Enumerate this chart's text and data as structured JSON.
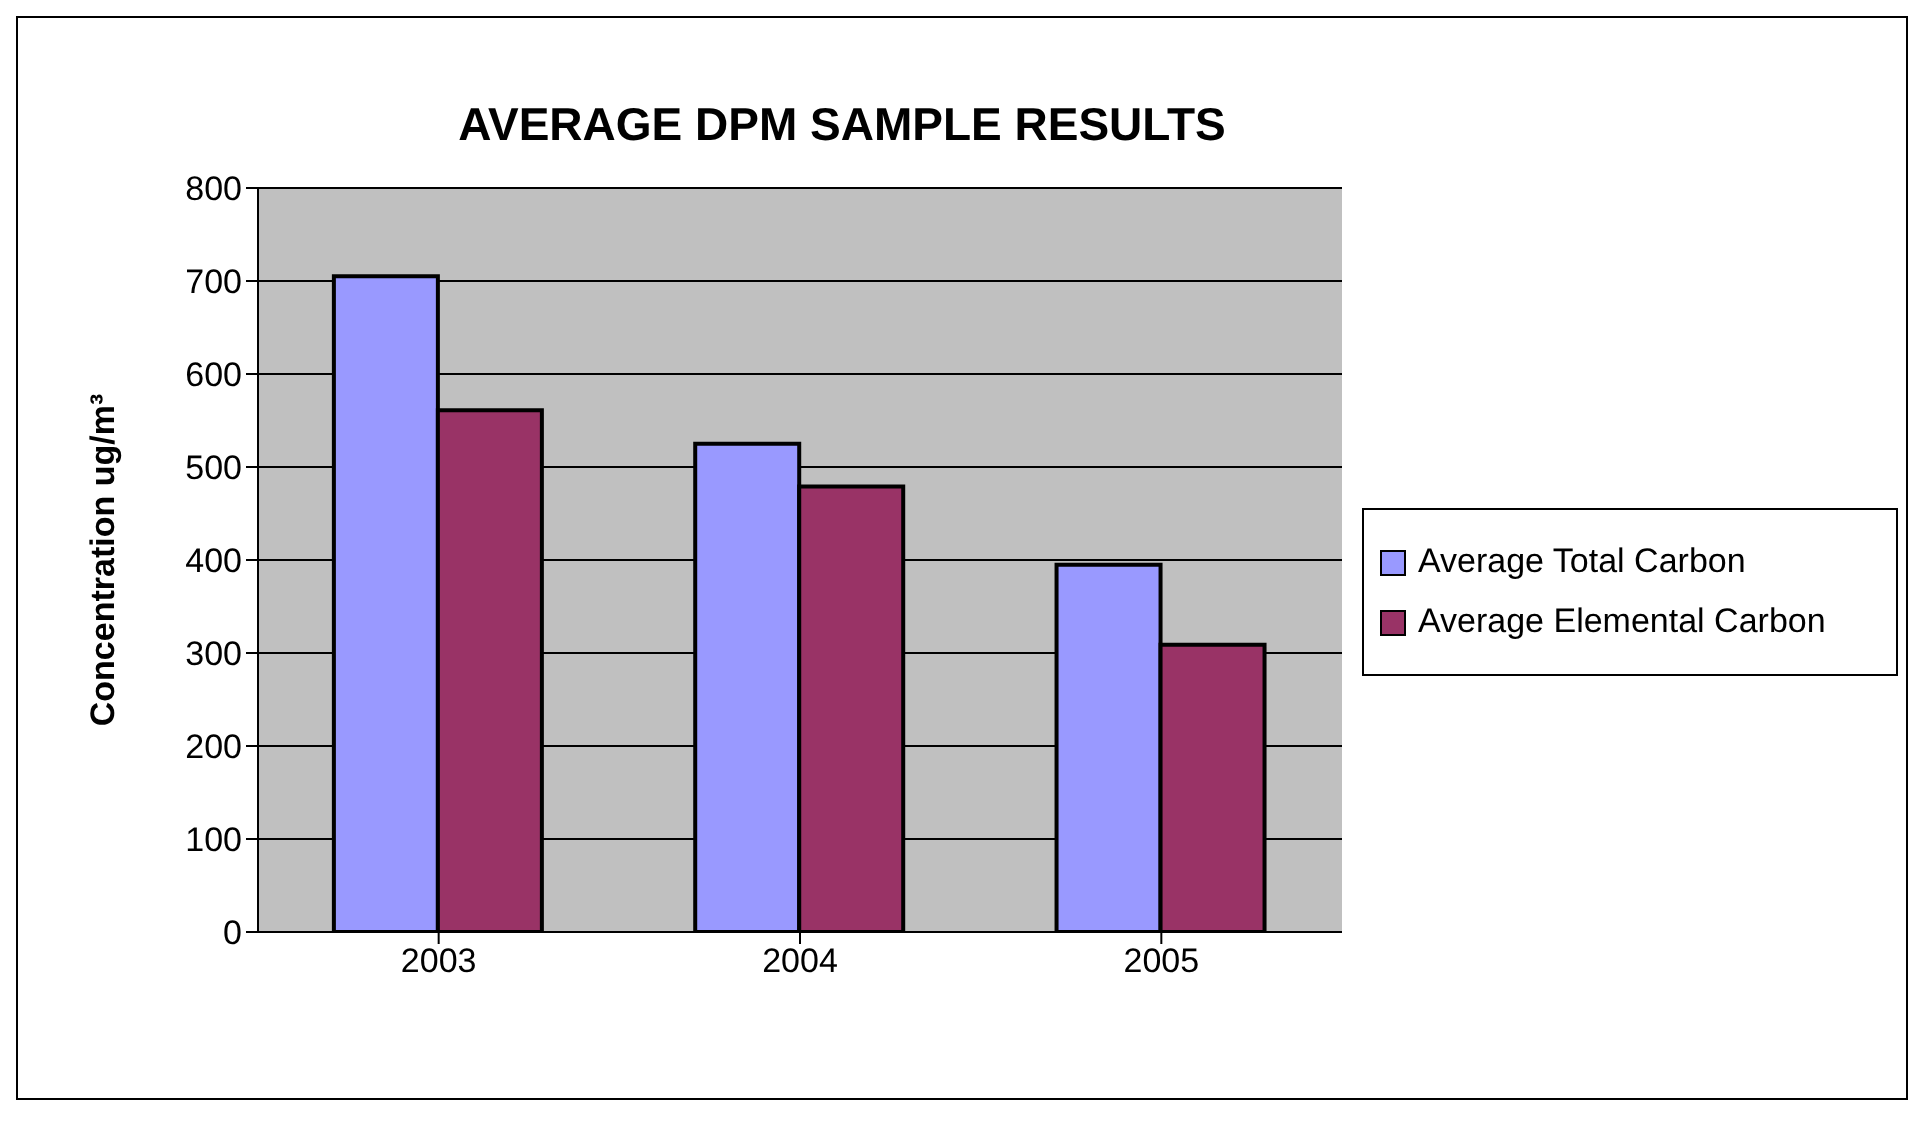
{
  "chart_data": {
    "type": "bar",
    "title": "AVERAGE DPM SAMPLE RESULTS",
    "ylabel": "Concentration ug/m³",
    "categories": [
      "2003",
      "2004",
      "2005"
    ],
    "series": [
      {
        "name": "Average Total Carbon",
        "color": "#9999ff",
        "values": [
          705,
          525,
          395
        ]
      },
      {
        "name": "Average Elemental Carbon",
        "color": "#993366",
        "values": [
          561,
          479,
          309
        ]
      }
    ],
    "ylim": [
      0,
      800
    ],
    "yticks": [
      0,
      100,
      200,
      300,
      400,
      500,
      600,
      700,
      800
    ],
    "grid": "y",
    "legend": "right"
  }
}
